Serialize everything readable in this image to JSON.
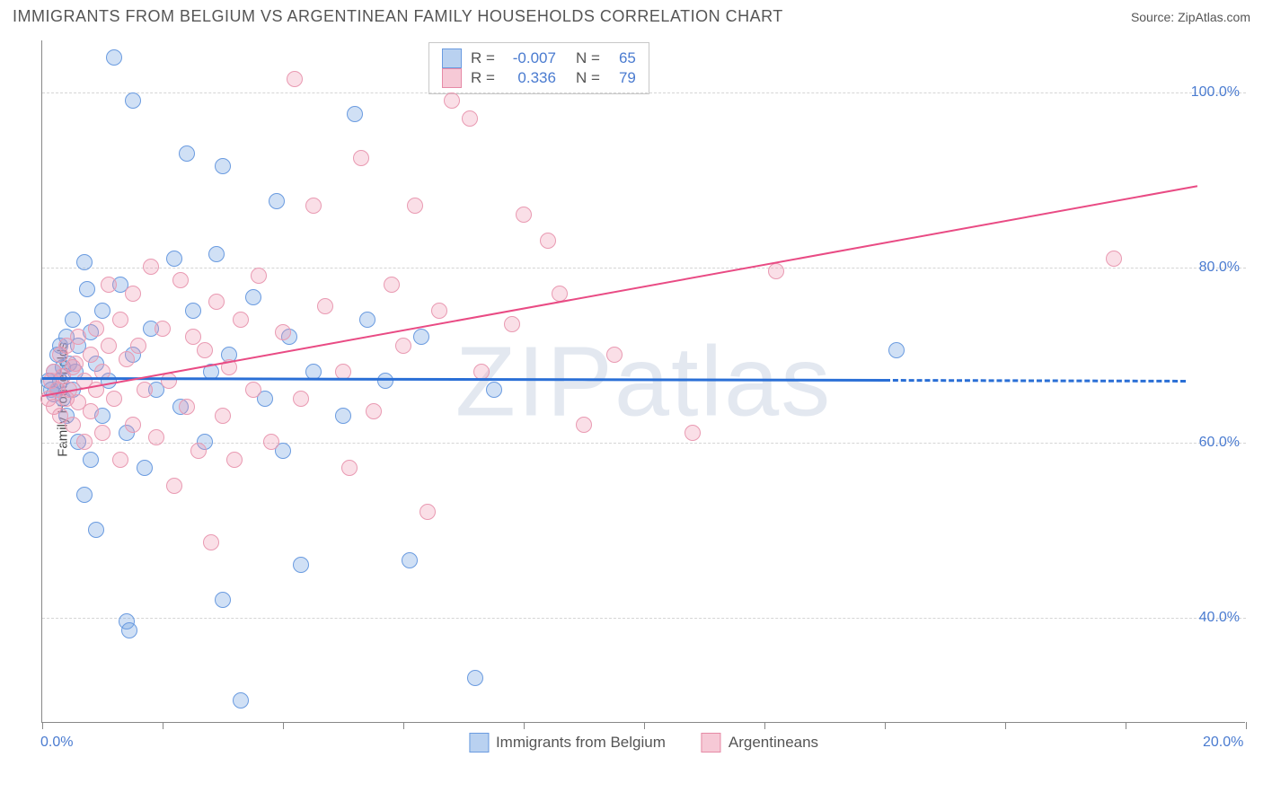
{
  "header": {
    "title": "IMMIGRANTS FROM BELGIUM VS ARGENTINEAN FAMILY HOUSEHOLDS CORRELATION CHART",
    "source_prefix": "Source: ",
    "source_name": "ZipAtlas.com"
  },
  "watermark": "ZIPatlas",
  "y_axis_label": "Family Households",
  "chart": {
    "type": "scatter",
    "xlim": [
      0,
      20
    ],
    "ylim": [
      28,
      106
    ],
    "y_ticks": [
      40,
      60,
      80,
      100
    ],
    "y_tick_labels": [
      "40.0%",
      "60.0%",
      "80.0%",
      "100.0%"
    ],
    "x_ticks": [
      0,
      2,
      4,
      6,
      8,
      10,
      12,
      14,
      16,
      18,
      20
    ],
    "x_tick_labels_shown": {
      "0": "0.0%",
      "20": "20.0%"
    },
    "background_color": "#ffffff",
    "grid_color": "#d5d5d5",
    "marker_radius": 9,
    "marker_stroke_width": 1,
    "series": [
      {
        "key": "belgium",
        "label": "Immigrants from Belgium",
        "fill": "rgba(120,165,225,0.35)",
        "stroke": "#6a9be0",
        "swatch_fill": "#b9d1f0",
        "swatch_border": "#6a9be0",
        "trend_color": "#2a6fd6",
        "trend_width": 3,
        "R": "-0.007",
        "N": "65",
        "trend": {
          "x1": 0,
          "y1": 67.5,
          "x2": 14.0,
          "y2": 67.3
        },
        "trend_extension": {
          "x1": 14.0,
          "y1": 67.3,
          "x2": 19.0,
          "y2": 67.2
        },
        "points": [
          [
            0.1,
            67
          ],
          [
            0.15,
            66
          ],
          [
            0.2,
            65.5
          ],
          [
            0.2,
            68
          ],
          [
            0.25,
            70
          ],
          [
            0.25,
            66
          ],
          [
            0.3,
            67
          ],
          [
            0.3,
            71
          ],
          [
            0.35,
            68.5
          ],
          [
            0.35,
            65
          ],
          [
            0.4,
            72
          ],
          [
            0.4,
            63
          ],
          [
            0.45,
            69
          ],
          [
            0.5,
            66
          ],
          [
            0.5,
            74
          ],
          [
            0.55,
            68
          ],
          [
            0.6,
            71
          ],
          [
            0.6,
            60
          ],
          [
            0.7,
            80.5
          ],
          [
            0.7,
            54
          ],
          [
            0.75,
            77.5
          ],
          [
            0.8,
            72.5
          ],
          [
            0.8,
            58
          ],
          [
            0.9,
            69
          ],
          [
            0.9,
            50
          ],
          [
            1.0,
            75
          ],
          [
            1.0,
            63
          ],
          [
            1.1,
            67
          ],
          [
            1.2,
            104
          ],
          [
            1.3,
            78
          ],
          [
            1.4,
            61
          ],
          [
            1.4,
            39.5
          ],
          [
            1.45,
            38.5
          ],
          [
            1.5,
            70
          ],
          [
            1.5,
            99
          ],
          [
            1.7,
            57
          ],
          [
            1.8,
            73
          ],
          [
            1.9,
            66
          ],
          [
            2.2,
            81
          ],
          [
            2.3,
            64
          ],
          [
            2.4,
            93
          ],
          [
            2.5,
            75
          ],
          [
            2.7,
            60
          ],
          [
            2.8,
            68
          ],
          [
            2.9,
            81.5
          ],
          [
            3.0,
            91.5
          ],
          [
            3.0,
            42
          ],
          [
            3.1,
            70
          ],
          [
            3.3,
            30.5
          ],
          [
            3.5,
            76.5
          ],
          [
            3.7,
            65
          ],
          [
            3.9,
            87.5
          ],
          [
            4.0,
            59
          ],
          [
            4.1,
            72
          ],
          [
            4.3,
            46
          ],
          [
            4.5,
            68
          ],
          [
            5.0,
            63
          ],
          [
            5.2,
            97.5
          ],
          [
            5.4,
            74
          ],
          [
            5.7,
            67
          ],
          [
            6.1,
            46.5
          ],
          [
            6.3,
            72
          ],
          [
            7.2,
            33
          ],
          [
            7.5,
            66
          ],
          [
            14.2,
            70.5
          ]
        ]
      },
      {
        "key": "argentineans",
        "label": "Argentineans",
        "fill": "rgba(240,150,175,0.30)",
        "stroke": "#e99ab2",
        "swatch_fill": "#f6c9d6",
        "swatch_border": "#e68aa6",
        "trend_color": "#e94b84",
        "trend_width": 2,
        "R": "0.336",
        "N": "79",
        "trend": {
          "x1": 0,
          "y1": 65.5,
          "x2": 19.2,
          "y2": 89.5
        },
        "points": [
          [
            0.1,
            65
          ],
          [
            0.15,
            67
          ],
          [
            0.2,
            64
          ],
          [
            0.2,
            68
          ],
          [
            0.25,
            66
          ],
          [
            0.3,
            70
          ],
          [
            0.3,
            63
          ],
          [
            0.35,
            67.5
          ],
          [
            0.4,
            65
          ],
          [
            0.4,
            71
          ],
          [
            0.45,
            66
          ],
          [
            0.5,
            68.5
          ],
          [
            0.5,
            62
          ],
          [
            0.55,
            69
          ],
          [
            0.6,
            64.5
          ],
          [
            0.6,
            72
          ],
          [
            0.7,
            67
          ],
          [
            0.7,
            60
          ],
          [
            0.8,
            70
          ],
          [
            0.8,
            63.5
          ],
          [
            0.9,
            66
          ],
          [
            0.9,
            73
          ],
          [
            1.0,
            68
          ],
          [
            1.0,
            61
          ],
          [
            1.1,
            71
          ],
          [
            1.1,
            78
          ],
          [
            1.2,
            65
          ],
          [
            1.3,
            74
          ],
          [
            1.3,
            58
          ],
          [
            1.4,
            69.5
          ],
          [
            1.5,
            77
          ],
          [
            1.5,
            62
          ],
          [
            1.6,
            71
          ],
          [
            1.7,
            66
          ],
          [
            1.8,
            80
          ],
          [
            1.9,
            60.5
          ],
          [
            2.0,
            73
          ],
          [
            2.1,
            67
          ],
          [
            2.2,
            55
          ],
          [
            2.3,
            78.5
          ],
          [
            2.4,
            64
          ],
          [
            2.5,
            72
          ],
          [
            2.6,
            59
          ],
          [
            2.7,
            70.5
          ],
          [
            2.8,
            48.5
          ],
          [
            2.9,
            76
          ],
          [
            3.0,
            63
          ],
          [
            3.1,
            68.5
          ],
          [
            3.2,
            58
          ],
          [
            3.3,
            74
          ],
          [
            3.5,
            66
          ],
          [
            3.6,
            79
          ],
          [
            3.8,
            60
          ],
          [
            4.0,
            72.5
          ],
          [
            4.2,
            101.5
          ],
          [
            4.3,
            65
          ],
          [
            4.5,
            87
          ],
          [
            4.7,
            75.5
          ],
          [
            5.0,
            68
          ],
          [
            5.1,
            57
          ],
          [
            5.3,
            92.5
          ],
          [
            5.5,
            63.5
          ],
          [
            5.8,
            78
          ],
          [
            6.0,
            71
          ],
          [
            6.2,
            87
          ],
          [
            6.4,
            52
          ],
          [
            6.6,
            75
          ],
          [
            6.8,
            99
          ],
          [
            7.1,
            97
          ],
          [
            7.3,
            68
          ],
          [
            7.8,
            73.5
          ],
          [
            8.0,
            86
          ],
          [
            8.4,
            83
          ],
          [
            8.6,
            77
          ],
          [
            9.0,
            62
          ],
          [
            9.5,
            70
          ],
          [
            10.8,
            61
          ],
          [
            12.2,
            79.5
          ],
          [
            17.8,
            81
          ]
        ]
      }
    ]
  },
  "stats_box": {
    "R_label": "R =",
    "N_label": "N ="
  }
}
